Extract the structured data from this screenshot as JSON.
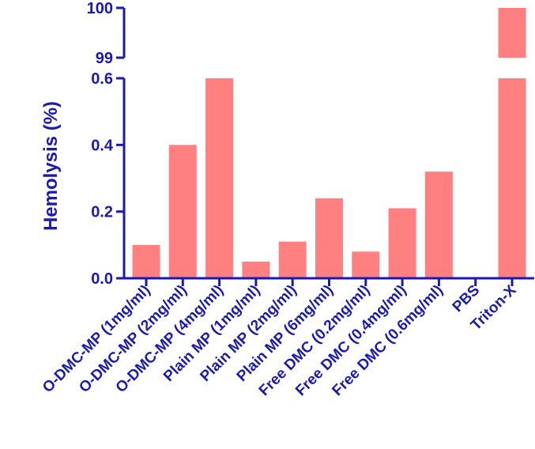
{
  "chart_data": {
    "type": "bar",
    "ylabel": "Hemolysis (%)",
    "xlabel": "",
    "title": "",
    "broken_axis": true,
    "lower_ylim": [
      0,
      0.6
    ],
    "upper_ylim": [
      99,
      100
    ],
    "lower_ticks": [
      "0.0",
      "0.2",
      "0.4",
      "0.6"
    ],
    "upper_ticks": [
      "99",
      "100"
    ],
    "categories": [
      "O-DMC-MP (1mg/ml)",
      "O-DMC-MP (2mg/ml)",
      "O-DMC-MP (4mg/ml)",
      "Plain MP (1mg/ml)",
      "Plain MP (2mg/ml)",
      "Plain MP (6mg/ml)",
      "Free DMC (0.2mg/ml)",
      "Free DMC (0.4mg/ml)",
      "Free DMC (0.6mg/ml)",
      "PBS",
      "Triton-X"
    ],
    "values": [
      0.1,
      0.4,
      0.6,
      0.05,
      0.11,
      0.24,
      0.08,
      0.21,
      0.32,
      0,
      100
    ],
    "bar_color": "#ff8080",
    "axis_color": "#1a1ab0"
  }
}
